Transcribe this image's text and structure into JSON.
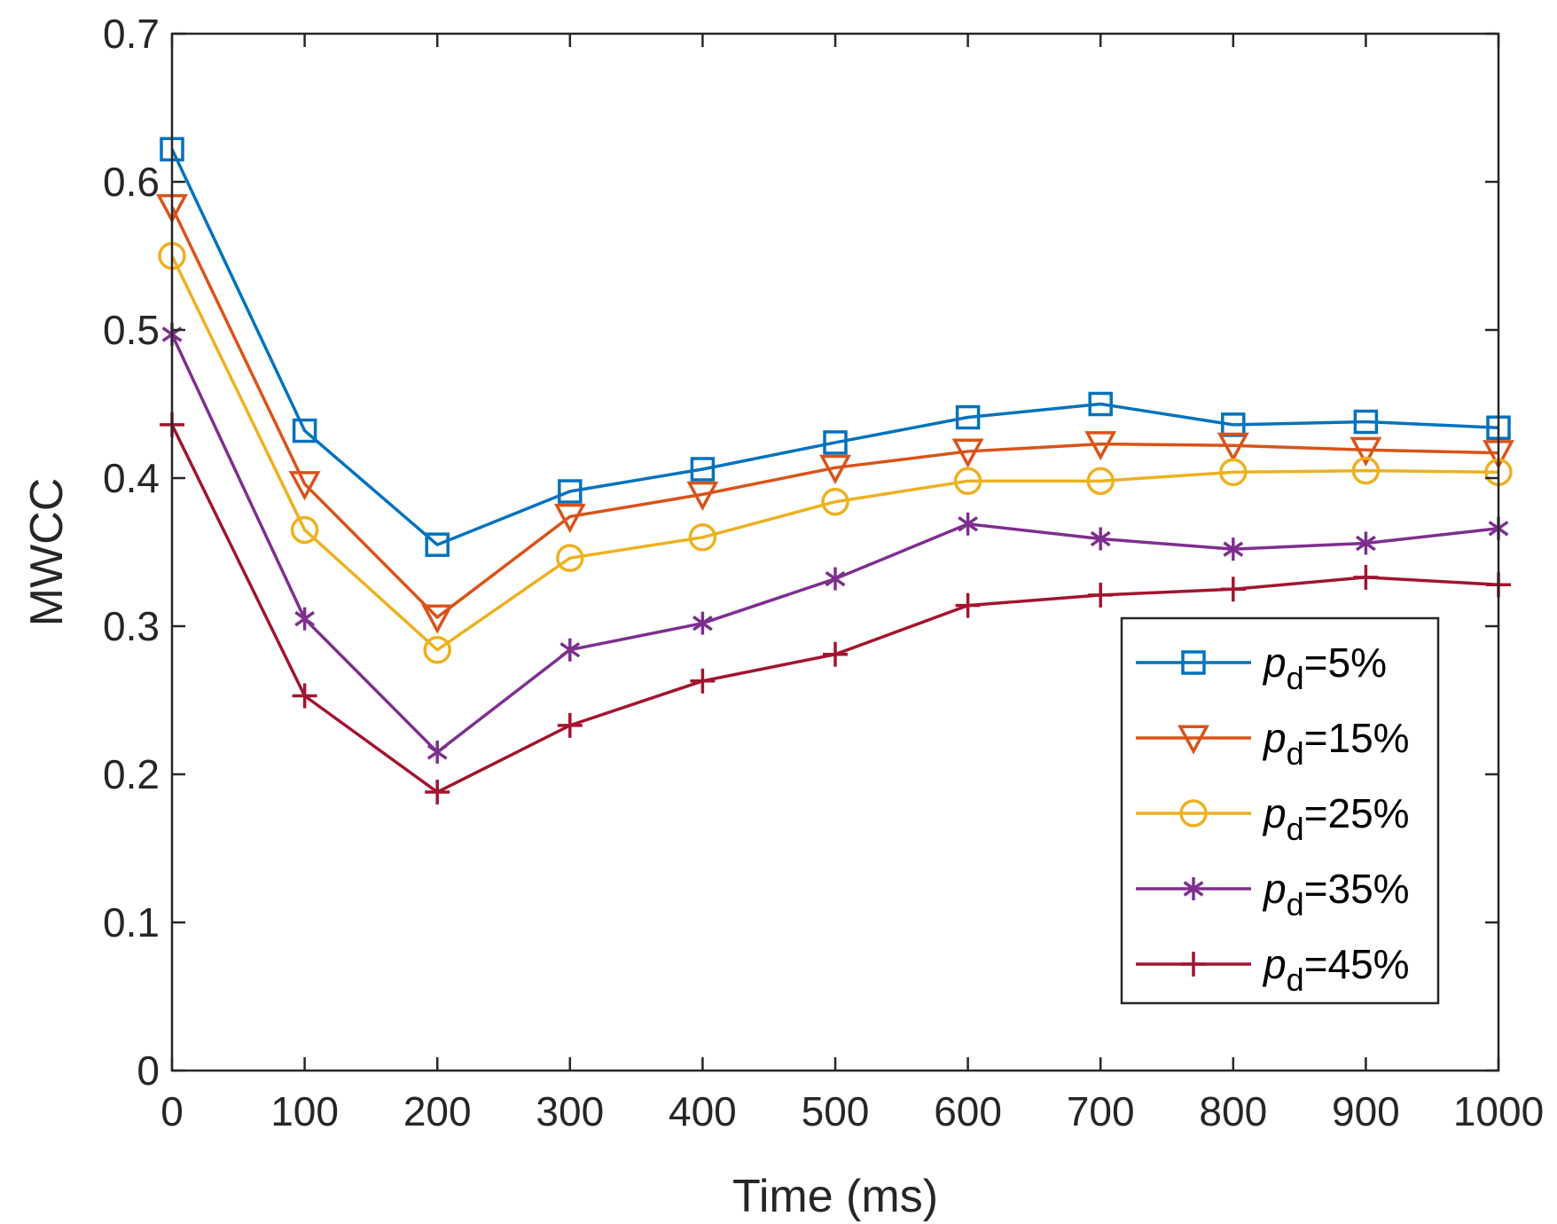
{
  "chart_data": {
    "type": "line",
    "title": "",
    "xlabel": "Time (ms)",
    "ylabel": "MWCC",
    "xlim": [
      0,
      1000
    ],
    "ylim": [
      0,
      0.7
    ],
    "x": [
      0,
      100,
      200,
      300,
      400,
      500,
      600,
      700,
      800,
      900,
      1000
    ],
    "xticks": [
      0,
      100,
      200,
      300,
      400,
      500,
      600,
      700,
      800,
      900,
      1000
    ],
    "xtick_labels": [
      "0",
      "100",
      "200",
      "300",
      "400",
      "500",
      "600",
      "700",
      "800",
      "900",
      "1000"
    ],
    "yticks": [
      0,
      0.1,
      0.2,
      0.3,
      0.4,
      0.5,
      0.6,
      0.7
    ],
    "ytick_labels": [
      "0",
      "0.1",
      "0.2",
      "0.3",
      "0.4",
      "0.5",
      "0.6",
      "0.7"
    ],
    "grid": false,
    "legend_position": "center-right",
    "series": [
      {
        "name": "p_d=5%",
        "label_main": "p",
        "label_sub": "d",
        "label_rest": "=5%",
        "marker": "square",
        "color": "#0072BD",
        "values": [
          0.622,
          0.432,
          0.355,
          0.391,
          0.406,
          0.424,
          0.441,
          0.45,
          0.436,
          0.438,
          0.434
        ]
      },
      {
        "name": "p_d=15%",
        "label_main": "p",
        "label_sub": "d",
        "label_rest": "=15%",
        "marker": "triangle-down",
        "color": "#D95319",
        "values": [
          0.583,
          0.396,
          0.306,
          0.374,
          0.389,
          0.407,
          0.418,
          0.423,
          0.422,
          0.419,
          0.417
        ]
      },
      {
        "name": "p_d=25%",
        "label_main": "p",
        "label_sub": "d",
        "label_rest": "=25%",
        "marker": "circle",
        "color": "#EDB120",
        "values": [
          0.55,
          0.365,
          0.284,
          0.346,
          0.36,
          0.384,
          0.398,
          0.398,
          0.404,
          0.405,
          0.404
        ]
      },
      {
        "name": "p_d=35%",
        "label_main": "p",
        "label_sub": "d",
        "label_rest": "=35%",
        "marker": "asterisk",
        "color": "#7E2F8E",
        "values": [
          0.497,
          0.305,
          0.215,
          0.284,
          0.302,
          0.332,
          0.369,
          0.359,
          0.352,
          0.356,
          0.366
        ]
      },
      {
        "name": "p_d=45%",
        "label_main": "p",
        "label_sub": "d",
        "label_rest": "=45%",
        "marker": "plus",
        "color": "#A2142F",
        "values": [
          0.436,
          0.253,
          0.188,
          0.233,
          0.263,
          0.281,
          0.314,
          0.321,
          0.325,
          0.333,
          0.328
        ]
      }
    ]
  }
}
